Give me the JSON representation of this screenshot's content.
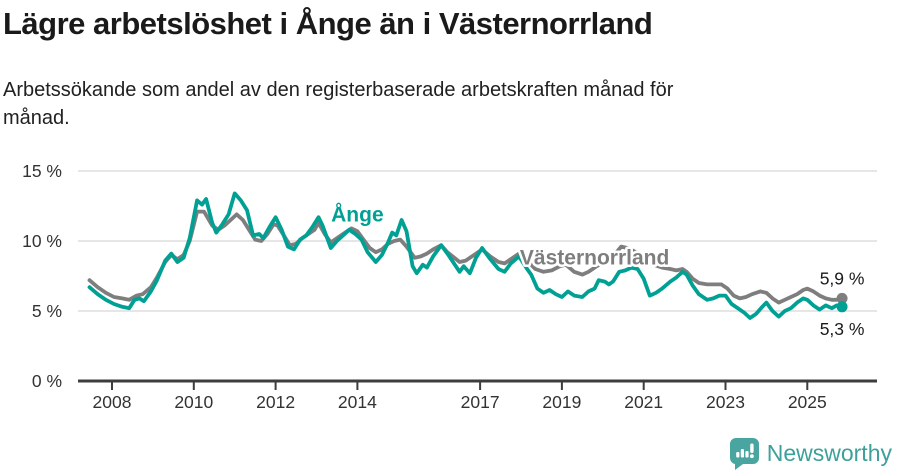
{
  "header": {
    "title": "Lägre arbetslöshet i Ånge än i Västernorrland",
    "subtitle": "Arbetssökande som andel av den registerbaserade arbetskraften månad för månad.",
    "subtitle_lines": [
      "Arbetssökande som andel av den registerbaserade arbetskraften månad för",
      "månad."
    ]
  },
  "colors": {
    "ange_teal": "#00A194",
    "vasternorrland_gray": "#7E7E7E",
    "grid": "#DEDEDE",
    "axis": "#3D3D3D",
    "axis_text": "#333333",
    "value_label_text": "#1A1A1A",
    "brand_teal": "#3DA09A",
    "brand_icon_teal": "#48A59F"
  },
  "footer": {
    "brand": "Newsworthy"
  },
  "chart_data": {
    "type": "line",
    "title": "Lägre arbetslöshet i Ånge än i Västernorrland",
    "xlabel": "",
    "ylabel": "",
    "unit": "percent of registered labour force",
    "grid": "horizontal",
    "legend_position": "inline-labels",
    "x_axis": {
      "ticks": [
        2008,
        2010,
        2012,
        2014,
        2017,
        2019,
        2021,
        2023,
        2025
      ],
      "tick_labels": [
        "2008",
        "2010",
        "2012",
        "2014",
        "2017",
        "2019",
        "2021",
        "2023",
        "2025"
      ],
      "range_years": [
        2007.1,
        2026.7
      ]
    },
    "y_axis": {
      "ticks": [
        0,
        5,
        10,
        15
      ],
      "tick_labels": [
        "0 %",
        "5 %",
        "10 %",
        "15 %"
      ],
      "range": [
        0,
        16.6
      ]
    },
    "annotations": [
      {
        "text": "Ånge",
        "series": "Ånge",
        "t": 2014.0,
        "v": 11.85
      },
      {
        "text": "Västernorrland",
        "series": "Västernorrland",
        "t": 2019.8,
        "v": 8.8
      }
    ],
    "series": [
      {
        "name": "Västernorrland",
        "color": "#7E7E7E",
        "last_value": 5.9,
        "end_value_label": "5,9 %",
        "end_label_position": "above",
        "points": [
          [
            2007.45,
            7.2
          ],
          [
            2007.65,
            6.7
          ],
          [
            2007.85,
            6.3
          ],
          [
            2008.05,
            6.0
          ],
          [
            2008.25,
            5.9
          ],
          [
            2008.42,
            5.8
          ],
          [
            2008.6,
            6.1
          ],
          [
            2008.75,
            6.2
          ],
          [
            2008.95,
            6.7
          ],
          [
            2009.1,
            7.4
          ],
          [
            2009.3,
            8.5
          ],
          [
            2009.45,
            9.0
          ],
          [
            2009.6,
            8.7
          ],
          [
            2009.75,
            9.0
          ],
          [
            2009.9,
            10.0
          ],
          [
            2010.08,
            12.1
          ],
          [
            2010.25,
            12.1
          ],
          [
            2010.45,
            11.1
          ],
          [
            2010.6,
            10.8
          ],
          [
            2010.75,
            11.1
          ],
          [
            2010.9,
            11.5
          ],
          [
            2011.05,
            11.9
          ],
          [
            2011.2,
            11.5
          ],
          [
            2011.35,
            10.8
          ],
          [
            2011.5,
            10.1
          ],
          [
            2011.65,
            10.0
          ],
          [
            2011.8,
            10.5
          ],
          [
            2011.95,
            11.2
          ],
          [
            2012.05,
            11.1
          ],
          [
            2012.2,
            10.4
          ],
          [
            2012.35,
            9.7
          ],
          [
            2012.5,
            9.8
          ],
          [
            2012.65,
            10.2
          ],
          [
            2012.8,
            10.5
          ],
          [
            2012.95,
            10.8
          ],
          [
            2013.05,
            11.3
          ],
          [
            2013.2,
            10.5
          ],
          [
            2013.35,
            9.9
          ],
          [
            2013.5,
            10.2
          ],
          [
            2013.65,
            10.5
          ],
          [
            2013.85,
            10.9
          ],
          [
            2014.0,
            10.7
          ],
          [
            2014.15,
            10.1
          ],
          [
            2014.3,
            9.5
          ],
          [
            2014.45,
            9.2
          ],
          [
            2014.6,
            9.4
          ],
          [
            2014.75,
            9.8
          ],
          [
            2014.9,
            10.0
          ],
          [
            2015.05,
            10.1
          ],
          [
            2015.2,
            9.6
          ],
          [
            2015.4,
            8.8
          ],
          [
            2015.55,
            8.9
          ],
          [
            2015.7,
            9.1
          ],
          [
            2015.85,
            9.4
          ],
          [
            2016.05,
            9.7
          ],
          [
            2016.2,
            9.2
          ],
          [
            2016.5,
            8.5
          ],
          [
            2016.65,
            8.6
          ],
          [
            2016.8,
            8.9
          ],
          [
            2016.95,
            9.2
          ],
          [
            2017.05,
            9.4
          ],
          [
            2017.25,
            8.9
          ],
          [
            2017.45,
            8.5
          ],
          [
            2017.6,
            8.4
          ],
          [
            2017.75,
            8.7
          ],
          [
            2017.95,
            9.1
          ],
          [
            2018.15,
            8.6
          ],
          [
            2018.35,
            8.0
          ],
          [
            2018.55,
            7.8
          ],
          [
            2018.75,
            7.9
          ],
          [
            2018.95,
            8.2
          ],
          [
            2019.1,
            8.3
          ],
          [
            2019.3,
            7.8
          ],
          [
            2019.5,
            7.6
          ],
          [
            2019.65,
            7.8
          ],
          [
            2019.85,
            8.2
          ],
          [
            2020.05,
            8.5
          ],
          [
            2020.25,
            8.9
          ],
          [
            2020.45,
            9.6
          ],
          [
            2020.6,
            9.5
          ],
          [
            2020.75,
            9.3
          ],
          [
            2020.95,
            8.9
          ],
          [
            2021.1,
            8.6
          ],
          [
            2021.25,
            8.3
          ],
          [
            2021.45,
            8.1
          ],
          [
            2021.65,
            8.0
          ],
          [
            2021.8,
            7.9
          ],
          [
            2021.95,
            8.0
          ],
          [
            2022.05,
            7.8
          ],
          [
            2022.2,
            7.3
          ],
          [
            2022.35,
            7.0
          ],
          [
            2022.55,
            6.9
          ],
          [
            2022.7,
            6.9
          ],
          [
            2022.9,
            6.9
          ],
          [
            2023.05,
            6.6
          ],
          [
            2023.2,
            6.1
          ],
          [
            2023.35,
            5.9
          ],
          [
            2023.5,
            6.0
          ],
          [
            2023.65,
            6.2
          ],
          [
            2023.85,
            6.4
          ],
          [
            2024.0,
            6.3
          ],
          [
            2024.15,
            5.9
          ],
          [
            2024.3,
            5.6
          ],
          [
            2024.45,
            5.8
          ],
          [
            2024.6,
            6.0
          ],
          [
            2024.75,
            6.2
          ],
          [
            2024.9,
            6.5
          ],
          [
            2025.0,
            6.6
          ],
          [
            2025.15,
            6.4
          ],
          [
            2025.3,
            6.1
          ],
          [
            2025.45,
            5.9
          ],
          [
            2025.6,
            5.8
          ],
          [
            2025.72,
            5.8
          ],
          [
            2025.85,
            5.9
          ]
        ]
      },
      {
        "name": "Ånge",
        "color": "#00A194",
        "last_value": 5.3,
        "end_value_label": "5,3 %",
        "end_label_position": "below",
        "points": [
          [
            2007.45,
            6.7
          ],
          [
            2007.65,
            6.2
          ],
          [
            2007.85,
            5.8
          ],
          [
            2008.05,
            5.5
          ],
          [
            2008.25,
            5.3
          ],
          [
            2008.42,
            5.2
          ],
          [
            2008.55,
            5.8
          ],
          [
            2008.67,
            5.9
          ],
          [
            2008.78,
            5.7
          ],
          [
            2008.95,
            6.4
          ],
          [
            2009.1,
            7.2
          ],
          [
            2009.3,
            8.6
          ],
          [
            2009.45,
            9.1
          ],
          [
            2009.6,
            8.5
          ],
          [
            2009.75,
            8.8
          ],
          [
            2009.9,
            10.2
          ],
          [
            2010.08,
            12.9
          ],
          [
            2010.2,
            12.6
          ],
          [
            2010.3,
            13.0
          ],
          [
            2010.45,
            11.3
          ],
          [
            2010.55,
            10.6
          ],
          [
            2010.7,
            11.2
          ],
          [
            2010.85,
            11.9
          ],
          [
            2011.0,
            13.4
          ],
          [
            2011.15,
            12.9
          ],
          [
            2011.3,
            12.2
          ],
          [
            2011.45,
            10.4
          ],
          [
            2011.6,
            10.5
          ],
          [
            2011.7,
            10.2
          ],
          [
            2011.85,
            11.0
          ],
          [
            2012.0,
            11.7
          ],
          [
            2012.15,
            10.8
          ],
          [
            2012.3,
            9.6
          ],
          [
            2012.45,
            9.4
          ],
          [
            2012.6,
            10.1
          ],
          [
            2012.75,
            10.4
          ],
          [
            2012.9,
            11.0
          ],
          [
            2013.05,
            11.7
          ],
          [
            2013.15,
            11.1
          ],
          [
            2013.35,
            9.5
          ],
          [
            2013.5,
            10.0
          ],
          [
            2013.65,
            10.4
          ],
          [
            2013.8,
            10.8
          ],
          [
            2013.95,
            10.5
          ],
          [
            2014.1,
            10.1
          ],
          [
            2014.25,
            9.2
          ],
          [
            2014.45,
            8.5
          ],
          [
            2014.6,
            9.0
          ],
          [
            2014.75,
            9.9
          ],
          [
            2014.85,
            10.6
          ],
          [
            2014.95,
            10.4
          ],
          [
            2015.08,
            11.5
          ],
          [
            2015.2,
            10.7
          ],
          [
            2015.35,
            8.2
          ],
          [
            2015.45,
            7.7
          ],
          [
            2015.6,
            8.3
          ],
          [
            2015.7,
            8.1
          ],
          [
            2015.85,
            8.9
          ],
          [
            2016.05,
            9.7
          ],
          [
            2016.2,
            9.1
          ],
          [
            2016.5,
            7.8
          ],
          [
            2016.6,
            8.2
          ],
          [
            2016.75,
            7.7
          ],
          [
            2016.9,
            8.8
          ],
          [
            2017.05,
            9.5
          ],
          [
            2017.25,
            8.7
          ],
          [
            2017.45,
            8.0
          ],
          [
            2017.6,
            7.8
          ],
          [
            2017.75,
            8.4
          ],
          [
            2017.95,
            8.9
          ],
          [
            2018.15,
            8.0
          ],
          [
            2018.25,
            7.6
          ],
          [
            2018.4,
            6.6
          ],
          [
            2018.55,
            6.3
          ],
          [
            2018.7,
            6.5
          ],
          [
            2018.85,
            6.2
          ],
          [
            2019.0,
            6.0
          ],
          [
            2019.15,
            6.4
          ],
          [
            2019.3,
            6.1
          ],
          [
            2019.5,
            6.0
          ],
          [
            2019.65,
            6.4
          ],
          [
            2019.8,
            6.6
          ],
          [
            2019.9,
            7.2
          ],
          [
            2020.05,
            7.1
          ],
          [
            2020.15,
            6.9
          ],
          [
            2020.25,
            7.1
          ],
          [
            2020.4,
            7.8
          ],
          [
            2020.55,
            7.9
          ],
          [
            2020.7,
            8.1
          ],
          [
            2020.85,
            8.0
          ],
          [
            2021.0,
            7.3
          ],
          [
            2021.15,
            6.1
          ],
          [
            2021.3,
            6.3
          ],
          [
            2021.45,
            6.6
          ],
          [
            2021.65,
            7.1
          ],
          [
            2021.8,
            7.4
          ],
          [
            2021.95,
            7.8
          ],
          [
            2022.05,
            7.6
          ],
          [
            2022.2,
            6.8
          ],
          [
            2022.35,
            6.2
          ],
          [
            2022.55,
            5.8
          ],
          [
            2022.7,
            5.9
          ],
          [
            2022.85,
            6.1
          ],
          [
            2023.0,
            6.1
          ],
          [
            2023.15,
            5.5
          ],
          [
            2023.3,
            5.2
          ],
          [
            2023.45,
            4.9
          ],
          [
            2023.6,
            4.5
          ],
          [
            2023.75,
            4.8
          ],
          [
            2023.9,
            5.3
          ],
          [
            2024.0,
            5.6
          ],
          [
            2024.15,
            5.0
          ],
          [
            2024.3,
            4.6
          ],
          [
            2024.45,
            5.0
          ],
          [
            2024.6,
            5.2
          ],
          [
            2024.75,
            5.6
          ],
          [
            2024.9,
            5.9
          ],
          [
            2025.0,
            5.8
          ],
          [
            2025.15,
            5.4
          ],
          [
            2025.3,
            5.1
          ],
          [
            2025.45,
            5.4
          ],
          [
            2025.6,
            5.2
          ],
          [
            2025.72,
            5.4
          ],
          [
            2025.85,
            5.3
          ]
        ]
      }
    ]
  }
}
